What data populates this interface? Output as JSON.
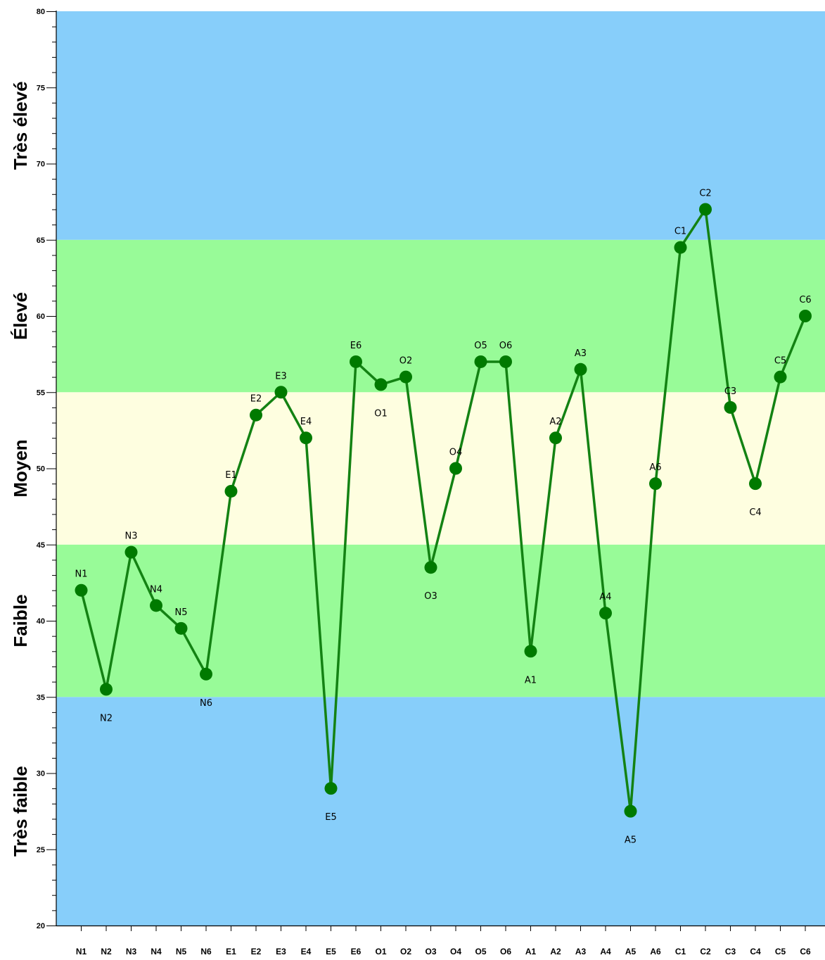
{
  "chart_data": {
    "type": "line",
    "ylim": [
      20,
      80
    ],
    "y_major_ticks": [
      20,
      25,
      30,
      35,
      40,
      45,
      50,
      55,
      60,
      65,
      70,
      75,
      80
    ],
    "y_minor_step": 1,
    "categories": [
      "N1",
      "N2",
      "N3",
      "N4",
      "N5",
      "N6",
      "E1",
      "E2",
      "E3",
      "E4",
      "E5",
      "E6",
      "O1",
      "O2",
      "O3",
      "O4",
      "O5",
      "O6",
      "A1",
      "A2",
      "A3",
      "A4",
      "A5",
      "A6",
      "C1",
      "C2",
      "C3",
      "C4",
      "C5",
      "C6"
    ],
    "series": [
      {
        "values": [
          42,
          35.5,
          44.5,
          41,
          39.5,
          36.5,
          48.5,
          53.5,
          55,
          52,
          29,
          57,
          55.5,
          56,
          43.5,
          50,
          57,
          57,
          38,
          52,
          56.5,
          40.5,
          27.5,
          49,
          64.5,
          67,
          54,
          49,
          56,
          60
        ],
        "point_labels": [
          "N1",
          "N2",
          "N3",
          "N4",
          "N5",
          "N6",
          "E1",
          "E2",
          "E3",
          "E4",
          "E5",
          "E6",
          "O1",
          "O2",
          "O3",
          "O4",
          "O5",
          "O6",
          "A1",
          "A2",
          "A3",
          "A4",
          "A5",
          "A6",
          "C1",
          "C2",
          "C3",
          "C4",
          "C5",
          "C6"
        ],
        "label_position": [
          "above",
          "below",
          "above",
          "above",
          "above",
          "below",
          "above",
          "above",
          "above",
          "above",
          "below",
          "above",
          "below",
          "above",
          "below",
          "above",
          "above",
          "above",
          "below",
          "above",
          "above",
          "above",
          "below",
          "above",
          "above",
          "above",
          "above",
          "below",
          "above",
          "above"
        ]
      }
    ],
    "bands": [
      {
        "from": 20,
        "to": 35,
        "label": "Très faible"
      },
      {
        "from": 35,
        "to": 45,
        "label": "Faible"
      },
      {
        "from": 45,
        "to": 55,
        "label": "Moyen"
      },
      {
        "from": 55,
        "to": 65,
        "label": "Élevé"
      },
      {
        "from": 65,
        "to": 80,
        "label": "Très élevé"
      }
    ],
    "band_colors": {
      "Très faible": "#87cefa",
      "Faible": "#98fb98",
      "Moyen": "#fefee0",
      "Élevé": "#98fb98",
      "Très élevé": "#87cefa"
    },
    "line_color": "#138213",
    "marker_color": "#007a00",
    "grid": false
  }
}
